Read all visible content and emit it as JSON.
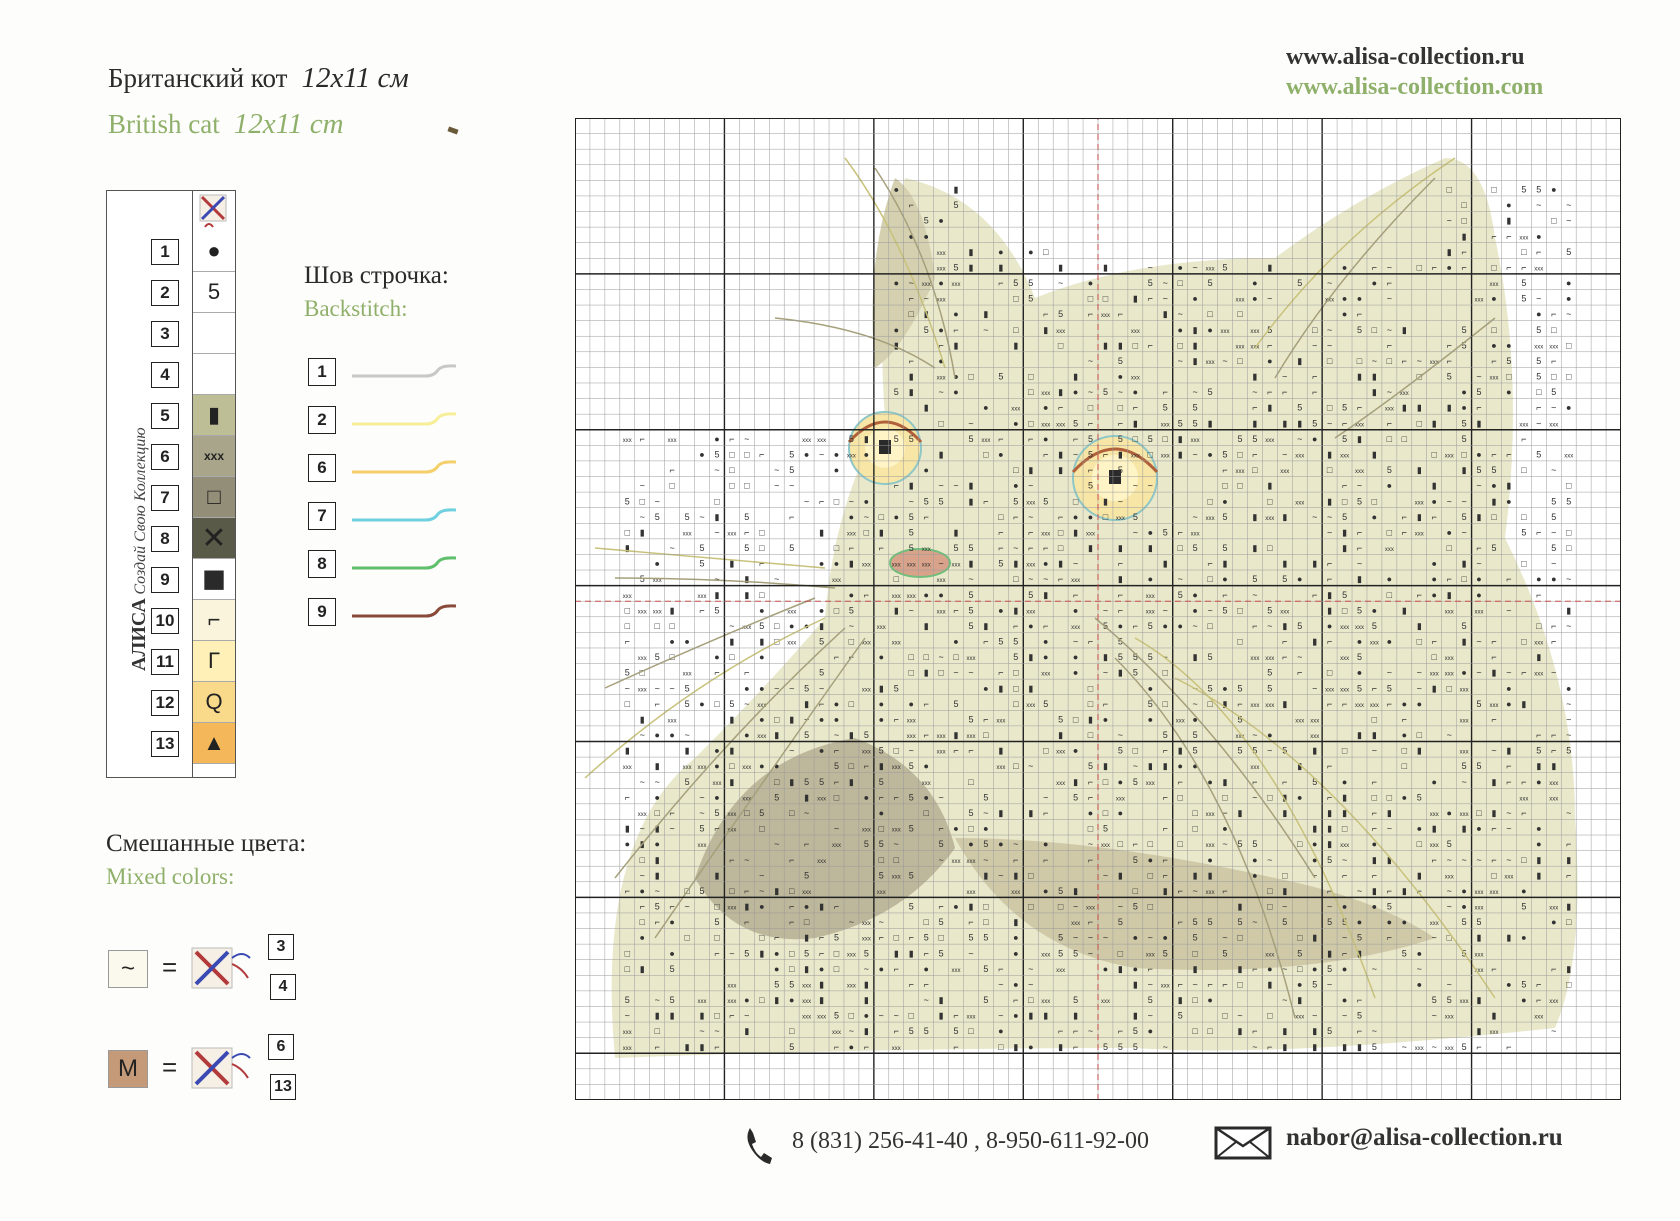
{
  "title": {
    "ru": "Британский кот",
    "en": "British cat",
    "size_ru": "12x11 см",
    "size_en": "12x11 cm"
  },
  "urls": [
    "www.alisa-collection.ru",
    "www.alisa-collection.com"
  ],
  "brand": {
    "slogan": "Создай Свою Коллекцию",
    "logo": "АЛИСА"
  },
  "key": {
    "rows": [
      {
        "num": "1",
        "symbol": "●",
        "fill": "#ffffff"
      },
      {
        "num": "2",
        "symbol": "5",
        "fill": "#ffffff"
      },
      {
        "num": "3",
        "symbol": "",
        "fill": "#ffffff"
      },
      {
        "num": "4",
        "symbol": "",
        "fill": "#ffffff"
      },
      {
        "num": "5",
        "symbol": "▮",
        "fill": "#bdbd96"
      },
      {
        "num": "6",
        "symbol": "xxx",
        "fill": "#a8a58a"
      },
      {
        "num": "7",
        "symbol": "□",
        "fill": "#928e78"
      },
      {
        "num": "8",
        "symbol": "✕",
        "fill": "#5a5a48"
      },
      {
        "num": "9",
        "symbol": "■",
        "fill": "#ffffff"
      },
      {
        "num": "10",
        "symbol": "⌐",
        "fill": "#fbf4dc"
      },
      {
        "num": "11",
        "symbol": "Γ",
        "fill": "#fff0b8"
      },
      {
        "num": "12",
        "symbol": "Q",
        "fill": "#f9d98a"
      },
      {
        "num": "13",
        "symbol": "▲",
        "fill": "#f4b85a"
      }
    ]
  },
  "backstitch": {
    "label_ru": "Шов строчка:",
    "label_en": "Backstitch:",
    "rows": [
      {
        "num": "1",
        "color": "#c8c8c8"
      },
      {
        "num": "2",
        "color": "#f7ee9a"
      },
      {
        "num": "6",
        "color": "#f4cf6a"
      },
      {
        "num": "7",
        "color": "#6fd0e0"
      },
      {
        "num": "8",
        "color": "#5fbf6a"
      },
      {
        "num": "9",
        "color": "#8a4a3a"
      }
    ]
  },
  "mixed": {
    "label_ru": "Смешанные цвета:",
    "label_en": "Mixed colors:",
    "items": [
      {
        "symbol": "~",
        "fill": "#fbf9ee",
        "a": "3",
        "b": "4"
      },
      {
        "symbol": "M",
        "fill": "#c49a78",
        "a": "6",
        "b": "13"
      }
    ]
  },
  "contact": {
    "phone": "8 (831) 256-41-40 , 8-950-611-92-00",
    "email": "nabor@alisa-collection.ru"
  }
}
